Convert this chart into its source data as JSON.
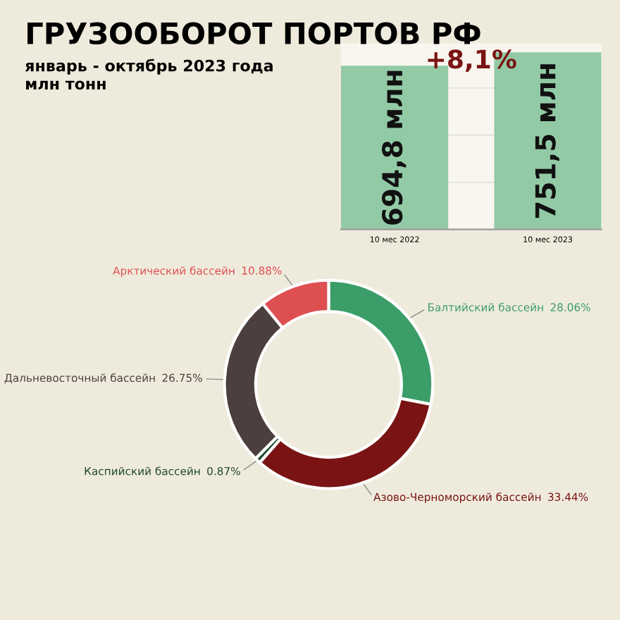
{
  "chart_data": [
    {
      "type": "bar",
      "title": "ГРУЗООБОРОТ ПОРТОВ РФ",
      "subtitle": "январь - октябрь 2023 года",
      "annotations": [
        "млн тонн",
        "+8,1%"
      ],
      "categories": [
        "10 мес 2022",
        "10 мес 2023"
      ],
      "values": [
        694.8,
        751.5
      ],
      "value_labels": [
        "694,8 млн",
        "751,5 млн"
      ],
      "color": "#93caa6",
      "grid": "y",
      "tick_labels": "x"
    },
    {
      "type": "donut",
      "categories": [
        "Балтийский бассейн",
        "Азово-Черноморский бассейн",
        "Каспийский бассейн",
        "Дальневосточный бассейн",
        "Арктический бассейн"
      ],
      "values": [
        28.06,
        33.44,
        0.87,
        26.75,
        10.88
      ],
      "value_labels": [
        "28.06%",
        "33.44%",
        "0.87%",
        "26.75%",
        "10.88%"
      ],
      "colors": [
        "#3b9d68",
        "#7a1414",
        "#1f4a30",
        "#4b403e",
        "#de4f52"
      ]
    }
  ]
}
